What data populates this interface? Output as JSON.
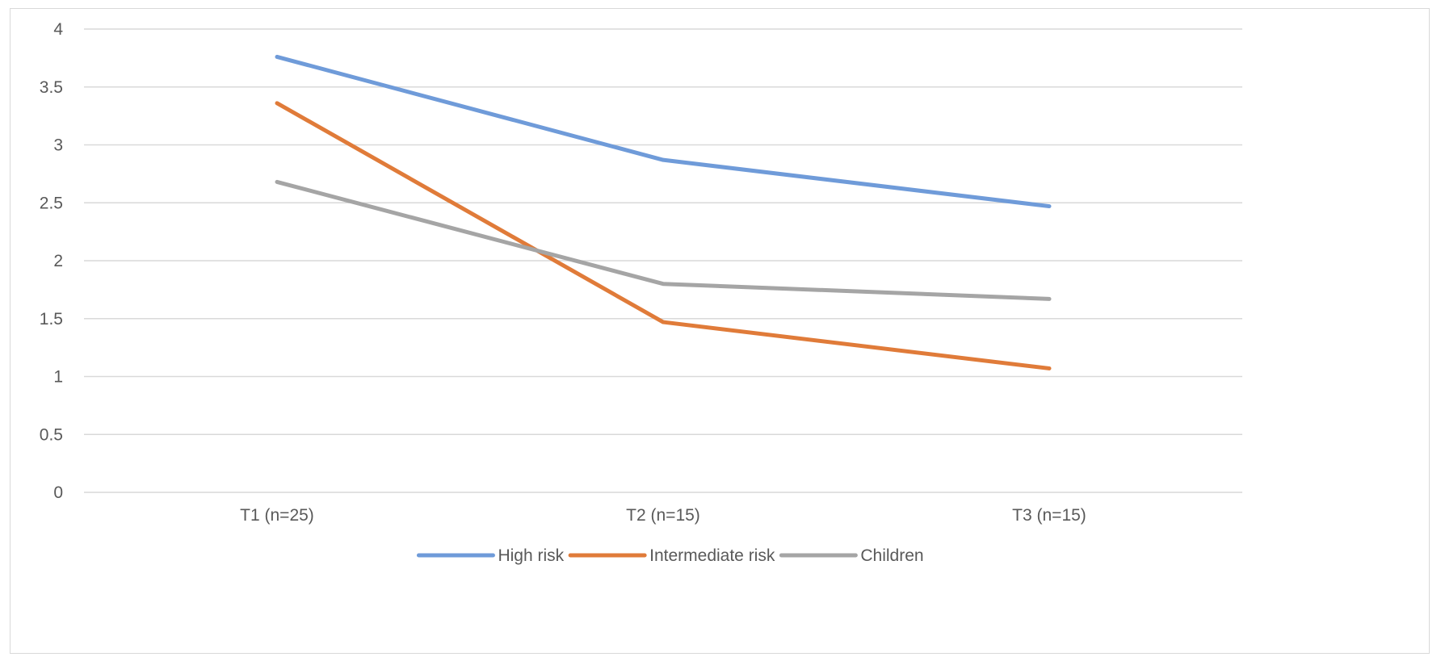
{
  "chart_data": {
    "type": "line",
    "title": "",
    "xlabel": "",
    "ylabel": "",
    "categories": [
      "T1 (n=25)",
      "T2 (n=15)",
      "T3 (n=15)"
    ],
    "ylim": [
      0,
      4
    ],
    "yticks": [
      0,
      0.5,
      1,
      1.5,
      2,
      2.5,
      3,
      3.5,
      4
    ],
    "ytick_labels": [
      "0",
      "0.5",
      "1",
      "1.5",
      "2",
      "2.5",
      "3",
      "3.5",
      "4"
    ],
    "grid": "horizontal",
    "legend_position": "bottom",
    "series": [
      {
        "name": "High risk",
        "color": "#6f9bd9",
        "values": [
          3.76,
          2.87,
          2.47
        ]
      },
      {
        "name": "Intermediate risk",
        "color": "#e07b39",
        "values": [
          3.36,
          1.47,
          1.07
        ]
      },
      {
        "name": "Children",
        "color": "#a5a5a5",
        "values": [
          2.68,
          1.8,
          1.67
        ]
      }
    ]
  }
}
